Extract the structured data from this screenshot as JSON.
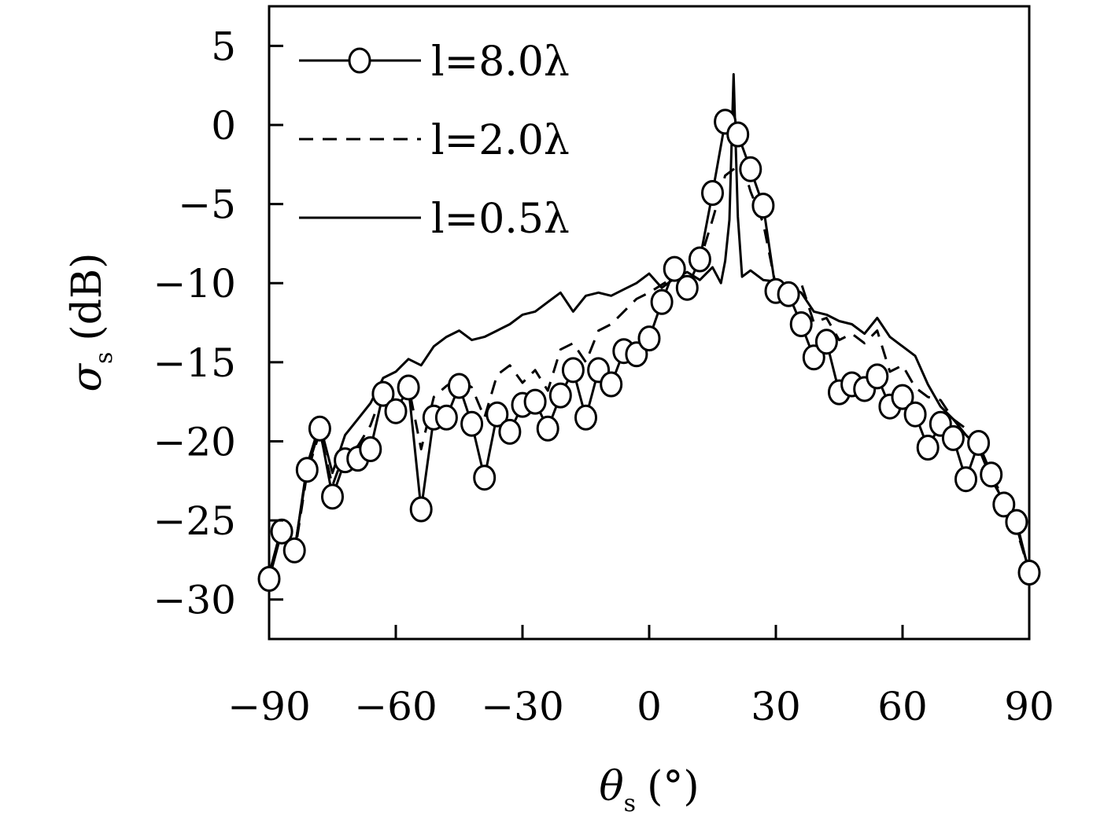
{
  "chart_data": {
    "type": "line",
    "title": "",
    "xlabel": "θ",
    "xlabel_sub": "s",
    "xlabel_unit": "(°)",
    "ylabel": "σ",
    "ylabel_sub": "s",
    "ylabel_unit": "(dB)",
    "xlim": [
      -90,
      90
    ],
    "ylim": [
      -32.5,
      7.5
    ],
    "xticks": [
      -90,
      -60,
      -30,
      0,
      30,
      60,
      90
    ],
    "yticks": [
      5,
      0,
      -5,
      -10,
      -15,
      -20,
      -25,
      -30
    ],
    "xtick_labels": [
      "−90",
      "−60",
      "−30",
      "0",
      "30",
      "60",
      "90"
    ],
    "ytick_labels": [
      "5",
      "0",
      "−5",
      "−10",
      "−15",
      "−20",
      "−25",
      "−30"
    ],
    "grid": false,
    "legend_position": "top-left",
    "series": [
      {
        "name": "l=8.0λ",
        "style": "solid-circles",
        "color": "#000000",
        "x": [
          -90,
          -87,
          -84,
          -81,
          -78,
          -75,
          -72,
          -69,
          -66,
          -63,
          -60,
          -57,
          -54,
          -51,
          -48,
          -45,
          -42,
          -39,
          -36,
          -33,
          -30,
          -27,
          -24,
          -21,
          -18,
          -15,
          -12,
          -9,
          -6,
          -3,
          0,
          3,
          6,
          9,
          12,
          15,
          18,
          21,
          24,
          27,
          30,
          33,
          36,
          39,
          42,
          45,
          48,
          51,
          54,
          57,
          60,
          63,
          66,
          69,
          72,
          75,
          78,
          81,
          84,
          87,
          90
        ],
        "y": [
          -28.7,
          -25.7,
          -26.9,
          -21.8,
          -19.2,
          -23.5,
          -21.2,
          -21.1,
          -20.5,
          -17.0,
          -18.1,
          -16.6,
          -24.3,
          -18.5,
          -18.5,
          -16.5,
          -18.9,
          -22.3,
          -18.3,
          -19.4,
          -17.7,
          -17.5,
          -19.2,
          -17.1,
          -15.5,
          -18.5,
          -15.5,
          -16.4,
          -14.3,
          -14.5,
          -13.5,
          -11.2,
          -9.1,
          -10.3,
          -8.5,
          -4.3,
          0.2,
          -0.6,
          -2.8,
          -5.1,
          -10.5,
          -10.7,
          -12.6,
          -14.7,
          -13.7,
          -16.9,
          -16.4,
          -16.7,
          -15.9,
          -17.8,
          -17.2,
          -18.3,
          -20.4,
          -18.9,
          -19.8,
          -22.4,
          -20.1,
          -22.1,
          -24.0,
          -25.1,
          -28.3
        ]
      },
      {
        "name": "l=2.0λ",
        "style": "dashed",
        "color": "#000000",
        "x": [
          -90,
          -87,
          -84,
          -81,
          -78,
          -75,
          -72,
          -69,
          -66,
          -63,
          -60,
          -57,
          -54,
          -51,
          -48,
          -45,
          -42,
          -39,
          -36,
          -33,
          -30,
          -27,
          -24,
          -21,
          -18,
          -15,
          -12,
          -9,
          -6,
          -3,
          0,
          3,
          6,
          9,
          12,
          15,
          18,
          20,
          22,
          24,
          27,
          30,
          33,
          36,
          39,
          42,
          45,
          48,
          51,
          54,
          57,
          60,
          63,
          66,
          69,
          72,
          75,
          78,
          81,
          84,
          87,
          90
        ],
        "y": [
          -28.5,
          -25.6,
          -27.2,
          -22.0,
          -19.4,
          -22.8,
          -20.6,
          -20.3,
          -19.0,
          -16.8,
          -17.8,
          -16.5,
          -20.5,
          -17.2,
          -16.5,
          -16.0,
          -16.6,
          -18.5,
          -15.8,
          -15.2,
          -16.3,
          -15.5,
          -16.8,
          -14.2,
          -13.8,
          -15.0,
          -13.0,
          -12.6,
          -11.8,
          -11.0,
          -10.6,
          -10.1,
          -9.6,
          -8.8,
          -8.6,
          -6.0,
          -3.2,
          -2.8,
          -2.4,
          -4.2,
          -6.2,
          -10.2,
          -10.8,
          -10.0,
          -12.5,
          -12.2,
          -13.6,
          -13.2,
          -13.8,
          -13.0,
          -15.6,
          -15.2,
          -16.6,
          -17.2,
          -17.4,
          -18.6,
          -19.2,
          -20.2,
          -22.0,
          -23.8,
          -25.6,
          -28.2
        ]
      },
      {
        "name": "l=0.5λ",
        "style": "solid",
        "color": "#000000",
        "x": [
          -90,
          -87,
          -84,
          -81,
          -78,
          -75,
          -72,
          -69,
          -66,
          -63,
          -60,
          -57,
          -54,
          -51,
          -48,
          -45,
          -42,
          -39,
          -36,
          -33,
          -30,
          -27,
          -24,
          -21,
          -18,
          -15,
          -12,
          -9,
          -6,
          -3,
          0,
          3,
          6,
          9,
          12,
          15,
          17,
          18,
          19,
          20,
          21,
          22,
          24,
          27,
          30,
          33,
          36,
          39,
          42,
          45,
          48,
          51,
          54,
          57,
          60,
          63,
          66,
          69,
          72,
          75,
          78,
          81,
          84,
          87,
          90
        ],
        "y": [
          -28.4,
          -25.4,
          -27.0,
          -21.5,
          -18.9,
          -22.0,
          -19.6,
          -18.6,
          -17.6,
          -16.0,
          -15.6,
          -14.8,
          -15.2,
          -14.0,
          -13.4,
          -13.0,
          -13.6,
          -13.4,
          -13.0,
          -12.6,
          -12.0,
          -11.8,
          -11.2,
          -10.6,
          -11.8,
          -10.8,
          -10.6,
          -10.8,
          -10.4,
          -10.0,
          -9.4,
          -10.3,
          -9.7,
          -9.3,
          -9.8,
          -9.0,
          -10.0,
          -8.6,
          -6.0,
          3.2,
          -5.8,
          -9.6,
          -9.2,
          -9.8,
          -9.9,
          -10.2,
          -10.6,
          -11.8,
          -12.0,
          -12.4,
          -12.6,
          -13.2,
          -12.2,
          -13.4,
          -14.0,
          -14.6,
          -16.4,
          -17.8,
          -18.6,
          -19.6,
          -20.4,
          -22.4,
          -23.8,
          -25.4,
          -28.2
        ]
      }
    ]
  }
}
